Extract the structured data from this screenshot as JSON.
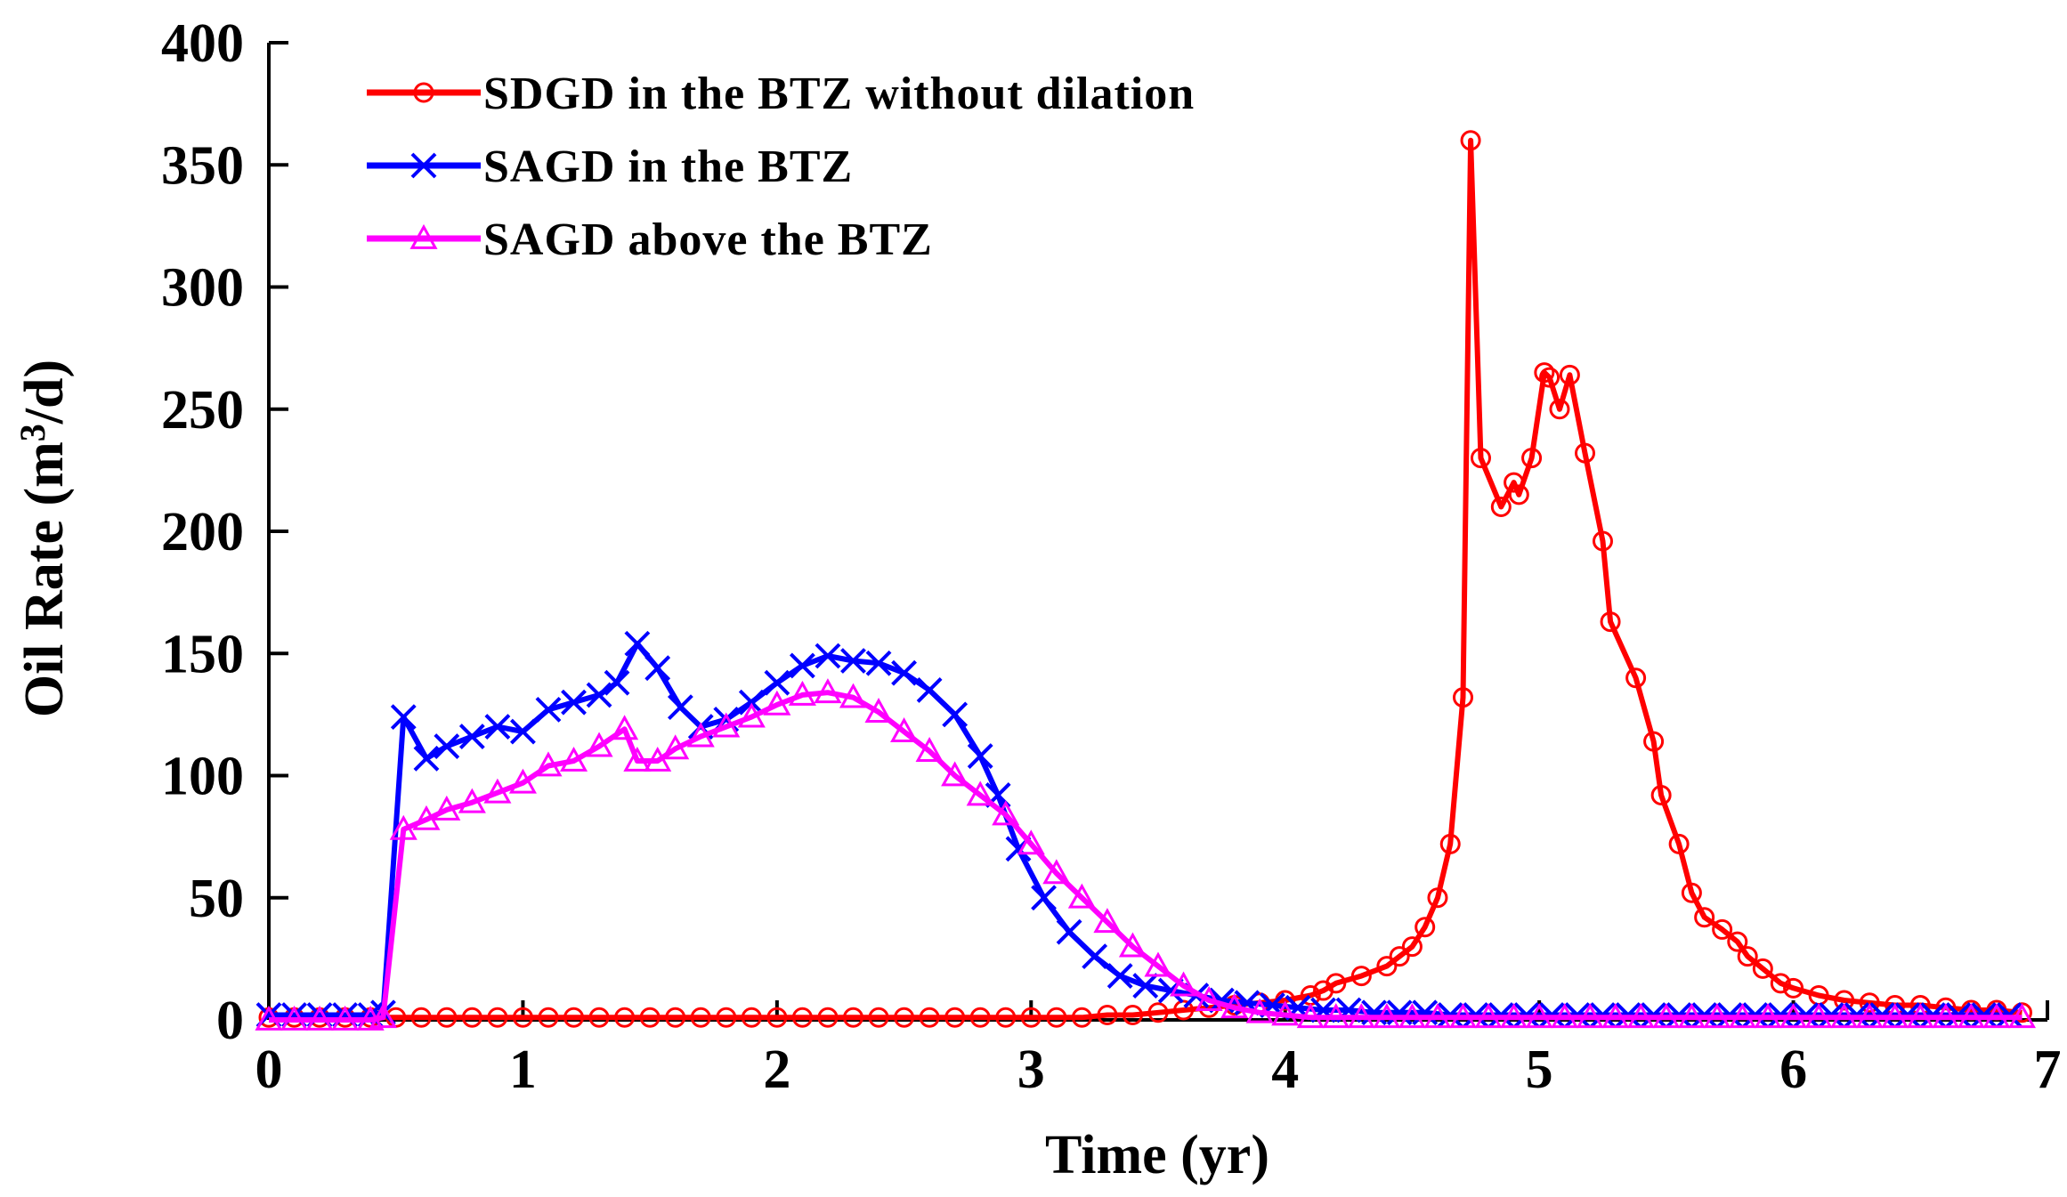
{
  "chart_data": {
    "type": "line",
    "title": "",
    "xlabel": "Time  (yr)",
    "ylabel": "Oil Rate (m",
    "ylabel_sup": "3",
    "ylabel_suffix": "/d)",
    "xlim": [
      0,
      7
    ],
    "ylim": [
      0,
      400
    ],
    "xticks": [
      "0",
      "1",
      "2",
      "3",
      "4",
      "5",
      "6",
      "7"
    ],
    "yticks": [
      "0",
      "50",
      "100",
      "150",
      "200",
      "250",
      "300",
      "350",
      "400"
    ],
    "grid": false,
    "legend_position": "top-left",
    "series": [
      {
        "name": "SDGD in the BTZ without dilation",
        "color": "#ff0000",
        "marker": "circle",
        "x": [
          0.0,
          0.1,
          0.2,
          0.3,
          0.4,
          0.5,
          0.6,
          0.7,
          0.8,
          0.9,
          1.0,
          1.1,
          1.2,
          1.3,
          1.4,
          1.5,
          1.6,
          1.7,
          1.8,
          1.9,
          2.0,
          2.1,
          2.2,
          2.3,
          2.4,
          2.5,
          2.6,
          2.7,
          2.8,
          2.9,
          3.0,
          3.1,
          3.2,
          3.3,
          3.4,
          3.5,
          3.6,
          3.7,
          3.8,
          3.9,
          4.0,
          4.1,
          4.15,
          4.2,
          4.3,
          4.4,
          4.45,
          4.5,
          4.55,
          4.6,
          4.65,
          4.7,
          4.73,
          4.77,
          4.85,
          4.9,
          4.92,
          4.97,
          5.02,
          5.04,
          5.08,
          5.12,
          5.18,
          5.25,
          5.28,
          5.38,
          5.45,
          5.48,
          5.55,
          5.6,
          5.65,
          5.72,
          5.78,
          5.82,
          5.88,
          5.95,
          6.0,
          6.1,
          6.2,
          6.3,
          6.4,
          6.5,
          6.6,
          6.7,
          6.8,
          6.9
        ],
        "y": [
          1,
          1,
          1,
          1,
          1,
          1,
          1,
          1,
          1,
          1,
          1,
          1,
          1,
          1,
          1,
          1,
          1,
          1,
          1,
          1,
          1,
          1,
          1,
          1,
          1,
          1,
          1,
          1,
          1,
          1,
          1,
          1,
          1,
          2,
          2,
          3,
          4,
          5,
          6,
          7,
          8,
          10,
          12,
          15,
          18,
          22,
          26,
          30,
          38,
          50,
          72,
          132,
          360,
          230,
          210,
          220,
          215,
          230,
          265,
          263,
          250,
          264,
          232,
          196,
          163,
          140,
          114,
          92,
          72,
          52,
          42,
          37,
          32,
          26,
          21,
          15,
          13,
          10,
          8,
          7,
          6,
          6,
          5,
          4,
          4,
          3
        ]
      },
      {
        "name": "SAGD in the BTZ",
        "color": "#0000ff",
        "marker": "x",
        "x": [
          0.0,
          0.1,
          0.2,
          0.3,
          0.4,
          0.45,
          0.53,
          0.62,
          0.7,
          0.8,
          0.9,
          1.0,
          1.1,
          1.2,
          1.3,
          1.37,
          1.45,
          1.53,
          1.62,
          1.7,
          1.8,
          1.9,
          2.0,
          2.1,
          2.2,
          2.3,
          2.4,
          2.5,
          2.6,
          2.7,
          2.8,
          2.87,
          2.95,
          3.05,
          3.15,
          3.25,
          3.35,
          3.45,
          3.55,
          3.65,
          3.75,
          3.85,
          3.95,
          4.05,
          4.15,
          4.25,
          4.35,
          4.45,
          4.55,
          4.65,
          4.75,
          4.85,
          4.95,
          5.05,
          5.15,
          5.25,
          5.35,
          5.45,
          5.55,
          5.65,
          5.75,
          5.85,
          5.95,
          6.05,
          6.15,
          6.25,
          6.35,
          6.45,
          6.55,
          6.65,
          6.75,
          6.85
        ],
        "y": [
          2,
          2,
          2,
          2,
          2,
          3,
          124,
          107,
          112,
          116,
          120,
          118,
          127,
          130,
          133,
          138,
          154,
          144,
          128,
          120,
          123,
          130,
          138,
          145,
          149,
          147,
          146,
          142,
          135,
          125,
          108,
          92,
          70,
          50,
          36,
          26,
          18,
          14,
          12,
          10,
          8,
          7,
          6,
          5,
          4,
          4,
          3,
          3,
          3,
          2,
          2,
          2,
          2,
          2,
          2,
          2,
          2,
          2,
          2,
          2,
          2,
          2,
          2,
          2,
          2,
          2,
          2,
          2,
          2,
          2,
          2,
          2
        ]
      },
      {
        "name": "SAGD above the BTZ",
        "color": "#ff00ff",
        "marker": "triangle",
        "x": [
          0.0,
          0.1,
          0.2,
          0.3,
          0.4,
          0.45,
          0.53,
          0.62,
          0.7,
          0.8,
          0.9,
          1.0,
          1.1,
          1.2,
          1.3,
          1.4,
          1.45,
          1.53,
          1.6,
          1.7,
          1.8,
          1.9,
          2.0,
          2.1,
          2.2,
          2.3,
          2.4,
          2.5,
          2.6,
          2.7,
          2.8,
          2.9,
          3.0,
          3.1,
          3.2,
          3.3,
          3.4,
          3.5,
          3.6,
          3.7,
          3.8,
          3.9,
          4.0,
          4.1,
          4.2,
          4.3,
          4.4,
          4.5,
          4.6,
          4.7,
          4.8,
          4.9,
          5.0,
          5.1,
          5.2,
          5.3,
          5.4,
          5.5,
          5.6,
          5.7,
          5.8,
          5.9,
          6.0,
          6.1,
          6.2,
          6.3,
          6.4,
          6.5,
          6.6,
          6.7,
          6.8,
          6.9
        ],
        "y": [
          0,
          0,
          0,
          0,
          0,
          1,
          78,
          82,
          86,
          89,
          93,
          97,
          104,
          106,
          112,
          119,
          106,
          106,
          111,
          116,
          120,
          124,
          129,
          133,
          134,
          132,
          126,
          118,
          110,
          100,
          92,
          84,
          72,
          60,
          50,
          40,
          30,
          22,
          14,
          8,
          5,
          3,
          2,
          1,
          1,
          1,
          1,
          1,
          1,
          1,
          1,
          1,
          1,
          1,
          1,
          1,
          1,
          1,
          1,
          1,
          1,
          1,
          1,
          1,
          1,
          1,
          1,
          1,
          1,
          1,
          1,
          1
        ]
      }
    ]
  }
}
